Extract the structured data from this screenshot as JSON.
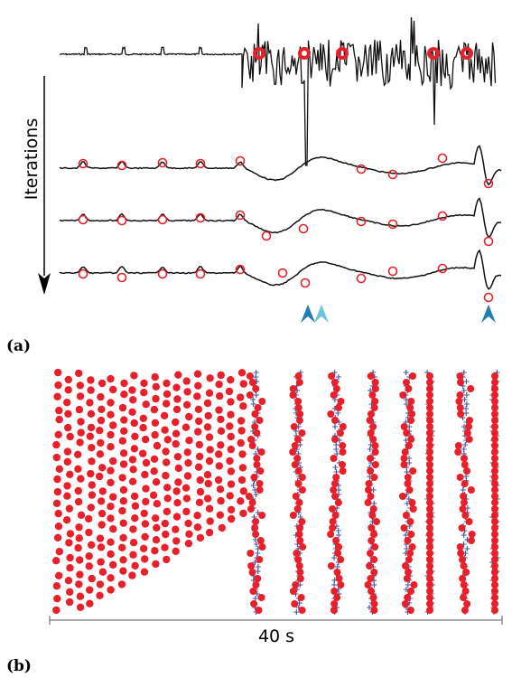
{
  "panel_a": {
    "label": "(a)",
    "arrow_label": "Iterations",
    "colors": {
      "trace": "#111111",
      "marker": "#e8202a",
      "arrow_dark": "#1e7fb4",
      "arrow_light": "#6cc5dc"
    }
  },
  "panel_b": {
    "label": "(b)",
    "scale_label": "40 s",
    "colors": {
      "dot": "#e8202a",
      "plus": "#3a55a4"
    }
  },
  "chart_data": [
    {
      "type": "line",
      "panel": "a",
      "series_count": 4,
      "notes": "Four stacked waveform traces, top is noisy raw signal, lower three are successive iterations; red circles mark detected events; three blue arrowheads mark locations.",
      "event_markers_per_trace": [
        5,
        12,
        13,
        14
      ],
      "arrowheads": [
        {
          "color": "dark",
          "count": 2
        },
        {
          "color": "light",
          "count": 1
        }
      ]
    },
    {
      "type": "scatter",
      "panel": "b",
      "xlabel": "40 s",
      "series": [
        {
          "marker": "filled-circle"
        },
        {
          "marker": "plus"
        }
      ]
    }
  ]
}
